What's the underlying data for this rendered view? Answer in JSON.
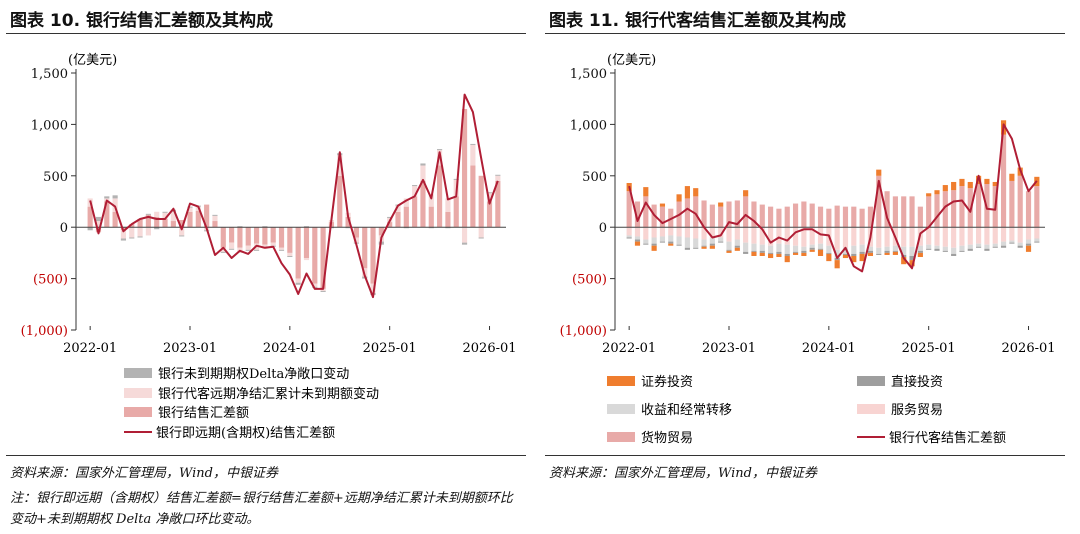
{
  "colors": {
    "delta": "#b3b3b3",
    "forward_change": "#f6dad9",
    "bank_settle": "#e8aaa8",
    "line": "#b01e35",
    "securities": "#ef7d2e",
    "fdi": "#9e9e9e",
    "income": "#d9d9d9",
    "services": "#f8d4d2",
    "goods": "#e8aaa8",
    "neg_label": "#c00000"
  },
  "panels": [
    {
      "title": "图表 10. 银行结售汇差额及其构成",
      "source": "资料来源：国家外汇管理局，Wind，中银证券",
      "note": "注：银行即远期（含期权）结售汇差额=银行结售汇差额+远期净结汇累计未到期额环比变动+未到期期权 Delta 净敞口环比变动。",
      "chart_data": {
        "type": "bar",
        "stacked": true,
        "unit_label": "(亿美元)",
        "yticks": [
          "1,500",
          "1,000",
          "500",
          "0",
          "(500)",
          "(1,000)"
        ],
        "ylim": [
          -1000,
          1500
        ],
        "xticks": [
          "2022-01",
          "2023-01",
          "2024-01",
          "2025-01",
          "2026-01"
        ],
        "legend": [
          "银行未到期期权Delta净敞口变动",
          "银行代客远期净结汇累计未到期额变动",
          "银行结售汇差额",
          "银行即远期(含期权)结售汇差额"
        ],
        "legend_placement": "bottom",
        "series": [
          {
            "name": "银行结售汇差额",
            "type": "bar",
            "values": [
              200,
              -50,
              250,
              150,
              -30,
              30,
              80,
              120,
              100,
              80,
              60,
              70,
              150,
              160,
              220,
              60,
              -200,
              -150,
              -200,
              -180,
              -160,
              -170,
              -150,
              -200,
              -250,
              -500,
              -300,
              -550,
              -600,
              50,
              500,
              100,
              -100,
              -400,
              -550,
              -80,
              50,
              150,
              200,
              300,
              450,
              200,
              600,
              150,
              300,
              1150,
              600,
              500,
              250,
              450
            ]
          },
          {
            "name": "银行代客远期净结汇累计未到期额变动",
            "type": "bar",
            "values": [
              80,
              60,
              30,
              130,
              -80,
              -100,
              -90,
              -80,
              50,
              60,
              90,
              -80,
              40,
              40,
              -30,
              50,
              -40,
              -60,
              -50,
              -40,
              -60,
              -40,
              -30,
              -20,
              -30,
              -40,
              -20,
              -30,
              -20,
              20,
              200,
              40,
              -50,
              -80,
              -90,
              -60,
              40,
              60,
              80,
              100,
              150,
              120,
              150,
              130,
              160,
              -150,
              200,
              -100,
              80,
              50
            ]
          },
          {
            "name": "银行未到期期权Delta净敞口变动",
            "type": "bar",
            "values": [
              -30,
              40,
              20,
              30,
              -20,
              -10,
              -10,
              10,
              -20,
              10,
              20,
              -10,
              10,
              10,
              -10,
              10,
              -10,
              -10,
              10,
              -10,
              -10,
              10,
              -10,
              -10,
              -10,
              -20,
              10,
              -10,
              -10,
              -10,
              20,
              -10,
              -10,
              -20,
              -20,
              -30,
              10,
              10,
              -10,
              10,
              20,
              -10,
              10,
              -10,
              10,
              -20,
              10,
              -10,
              10,
              10
            ]
          },
          {
            "name": "银行即远期(含期权)结售汇差额",
            "type": "line",
            "values": [
              260,
              -60,
              260,
              200,
              -40,
              30,
              80,
              100,
              80,
              80,
              180,
              -20,
              230,
              200,
              -10,
              -270,
              -200,
              -300,
              -230,
              -260,
              -180,
              -200,
              -190,
              -350,
              -460,
              -650,
              -450,
              -600,
              -600,
              70,
              730,
              100,
              -170,
              -470,
              -680,
              -100,
              60,
              210,
              260,
              300,
              460,
              280,
              730,
              270,
              300,
              1290,
              1120,
              670,
              230,
              450
            ]
          }
        ]
      }
    },
    {
      "title": "图表 11. 银行代客结售汇差额及其构成",
      "source": "资料来源：国家外汇管理局，Wind，中银证券",
      "chart_data": {
        "type": "bar",
        "stacked": true,
        "unit_label": "(亿美元)",
        "yticks": [
          "1,500",
          "1,000",
          "500",
          "0",
          "(500)",
          "(1,000)"
        ],
        "ylim": [
          -1000,
          1500
        ],
        "xticks": [
          "2022-01",
          "2023-01",
          "2024-01",
          "2025-01",
          "2026-01"
        ],
        "legend": [
          "证券投资",
          "直接投资",
          "收益和经常转移",
          "服务贸易",
          "货物贸易",
          "银行代客结售汇差额"
        ],
        "legend_placement": "bottom",
        "series": [
          {
            "name": "货物贸易",
            "type": "bar",
            "values": [
              350,
              250,
              300,
              220,
              200,
              180,
              250,
              280,
              300,
              260,
              220,
              200,
              250,
              260,
              300,
              250,
              220,
              200,
              180,
              200,
              230,
              250,
              230,
              200,
              180,
              210,
              200,
              200,
              180,
              200,
              500,
              350,
              300,
              300,
              300,
              200,
              300,
              320,
              350,
              360,
              400,
              380,
              420,
              420,
              400,
              900,
              450,
              500,
              350,
              400
            ]
          },
          {
            "name": "服务贸易",
            "type": "bar",
            "values": [
              -80,
              -90,
              -120,
              -100,
              -90,
              -80,
              -90,
              -100,
              -110,
              -120,
              -110,
              -100,
              -140,
              -120,
              -150,
              -160,
              -170,
              -180,
              -160,
              -170,
              -180,
              -190,
              -170,
              -160,
              -180,
              -220,
              -200,
              -180,
              -170,
              -190,
              -200,
              -190,
              -180,
              -190,
              -190,
              -180,
              -170,
              -180,
              -190,
              -200,
              -180,
              -170,
              -160,
              -170,
              -160,
              -140,
              -130,
              -150,
              -120,
              -110
            ]
          },
          {
            "name": "收益和经常转移",
            "type": "bar",
            "values": [
              -20,
              -30,
              -40,
              -60,
              -50,
              -60,
              -80,
              -100,
              -90,
              -60,
              -50,
              -40,
              -80,
              -60,
              -90,
              -70,
              -60,
              -70,
              -80,
              -90,
              -60,
              -40,
              -30,
              -50,
              -70,
              -80,
              -60,
              -80,
              -70,
              -40,
              -60,
              -40,
              -50,
              -80,
              -90,
              -50,
              -40,
              -30,
              -40,
              -60,
              -50,
              -40,
              -30,
              -40,
              -30,
              -40,
              -20,
              -30,
              -40,
              -30
            ]
          },
          {
            "name": "直接投资",
            "type": "bar",
            "values": [
              -10,
              -20,
              -10,
              -20,
              -10,
              -20,
              -10,
              -20,
              -10,
              -10,
              -20,
              -10,
              -10,
              -20,
              -20,
              -10,
              -20,
              -10,
              -20,
              -20,
              -10,
              -20,
              -20,
              -10,
              -10,
              -20,
              -10,
              -20,
              -20,
              -20,
              -10,
              -20,
              -10,
              -20,
              -40,
              -20,
              -10,
              -20,
              -10,
              -20,
              -10,
              -20,
              -10,
              -20,
              -10,
              -20,
              -10,
              -20,
              -20,
              -10
            ]
          },
          {
            "name": "证券投资",
            "type": "bar",
            "values": [
              80,
              -40,
              90,
              -50,
              30,
              -20,
              70,
              120,
              80,
              -20,
              -30,
              40,
              -20,
              -30,
              60,
              -40,
              -30,
              -40,
              -30,
              -60,
              -20,
              -30,
              -20,
              -60,
              -70,
              -80,
              -30,
              -60,
              -70,
              -30,
              60,
              -20,
              -30,
              -70,
              -60,
              -40,
              30,
              40,
              60,
              80,
              70,
              60,
              80,
              50,
              40,
              140,
              70,
              80,
              -60,
              90
            ]
          },
          {
            "name": "银行代客结售汇差额",
            "type": "line",
            "values": [
              400,
              60,
              240,
              120,
              40,
              80,
              120,
              180,
              130,
              0,
              -100,
              -80,
              50,
              30,
              120,
              60,
              -20,
              -150,
              -100,
              -130,
              -50,
              -20,
              -20,
              -70,
              -80,
              -300,
              -200,
              -380,
              -430,
              -100,
              450,
              90,
              -100,
              -300,
              -400,
              -60,
              0,
              100,
              200,
              250,
              260,
              150,
              500,
              180,
              170,
              1000,
              860,
              560,
              350,
              450
            ]
          }
        ]
      }
    }
  ]
}
